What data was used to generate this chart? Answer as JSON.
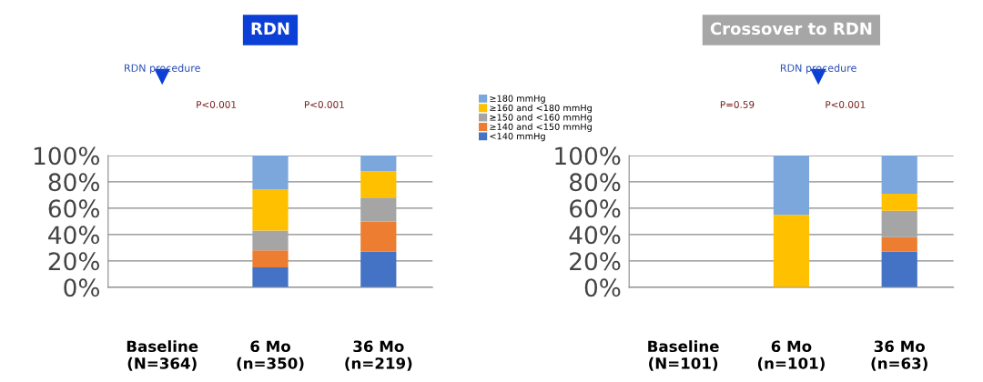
{
  "chart_data": [
    {
      "type": "bar",
      "title": "RDN",
      "stacked": true,
      "categories": [
        "Baseline\n(N=364)",
        "6 Mo\n(n=350)",
        "36 Mo\n(n=219)"
      ],
      "series": [
        {
          "name": "<140 mmHg",
          "color": "#4472c4",
          "values": [
            null,
            15,
            27
          ]
        },
        {
          "name": "≥140 and <150 mmHg",
          "color": "#ed7d31",
          "values": [
            null,
            13,
            23
          ]
        },
        {
          "name": "≥150 and <160 mmHg",
          "color": "#a5a5a5",
          "values": [
            null,
            15,
            18
          ]
        },
        {
          "name": "≥160 and <180 mmHg",
          "color": "#ffc000",
          "values": [
            null,
            31,
            20
          ]
        },
        {
          "name": "≥180 mmHg",
          "color": "#7ba7dc",
          "values": [
            null,
            26,
            12
          ]
        }
      ],
      "ylim": [
        0,
        100
      ],
      "yticks": [
        {
          "value": 0,
          "label": "0%"
        },
        {
          "value": 20,
          "label": "20%"
        },
        {
          "value": 40,
          "label": "40%"
        },
        {
          "value": 60,
          "label": "60%"
        },
        {
          "value": 80,
          "label": "80%"
        },
        {
          "value": 100,
          "label": "100%"
        }
      ],
      "grid": "y",
      "legend": "right",
      "annotations": [
        "RDN procedure",
        "P<0.001",
        "P<0.001"
      ]
    },
    {
      "type": "bar",
      "title": "Crossover to RDN",
      "stacked": true,
      "categories": [
        "Baseline\n(N=101)",
        "6 Mo\n(n=101)",
        "36 Mo\n(n=63)"
      ],
      "series": [
        {
          "color": "#4472c4",
          "values": [
            null,
            0,
            27
          ]
        },
        {
          "color": "#ed7d31",
          "values": [
            null,
            0,
            11
          ]
        },
        {
          "color": "#a5a5a5",
          "values": [
            null,
            0,
            20
          ]
        },
        {
          "color": "#ffc000",
          "values": [
            null,
            55,
            13
          ]
        },
        {
          "color": "#7ba7dc",
          "values": [
            null,
            45,
            29
          ]
        }
      ],
      "ylim": [
        0,
        100
      ],
      "yticks": [
        {
          "value": 0,
          "label": "0%"
        },
        {
          "value": 20,
          "label": "20%"
        },
        {
          "value": 40,
          "label": "40%"
        },
        {
          "value": 60,
          "label": "60%"
        },
        {
          "value": 80,
          "label": "80%"
        },
        {
          "value": 100,
          "label": "100%"
        }
      ],
      "grid": "y",
      "annotations": [
        "P=0.59",
        "RDN procedure",
        "P<0.001"
      ]
    }
  ]
}
